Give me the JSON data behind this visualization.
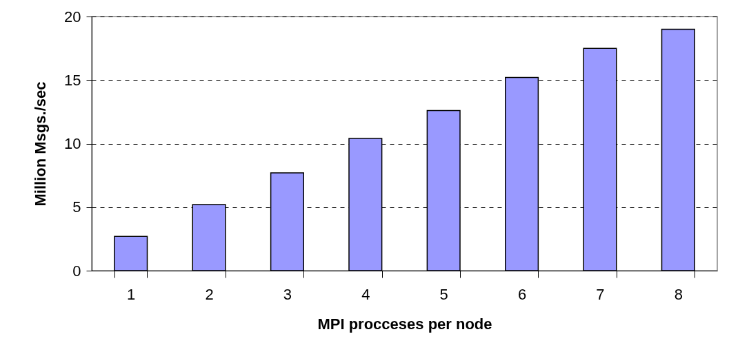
{
  "chart_data": {
    "type": "bar",
    "xlabel": "MPI procceses per node",
    "ylabel": "Million Msgs./sec",
    "categories": [
      "1",
      "2",
      "3",
      "4",
      "5",
      "6",
      "7",
      "8"
    ],
    "values": [
      2.7,
      5.2,
      7.7,
      10.4,
      12.6,
      15.2,
      17.5,
      19.0
    ],
    "color": "#9999ff",
    "ylim": [
      0,
      20
    ],
    "yticks": [
      0,
      5,
      10,
      15,
      20
    ],
    "grid": "y",
    "line_style": "dashed"
  }
}
